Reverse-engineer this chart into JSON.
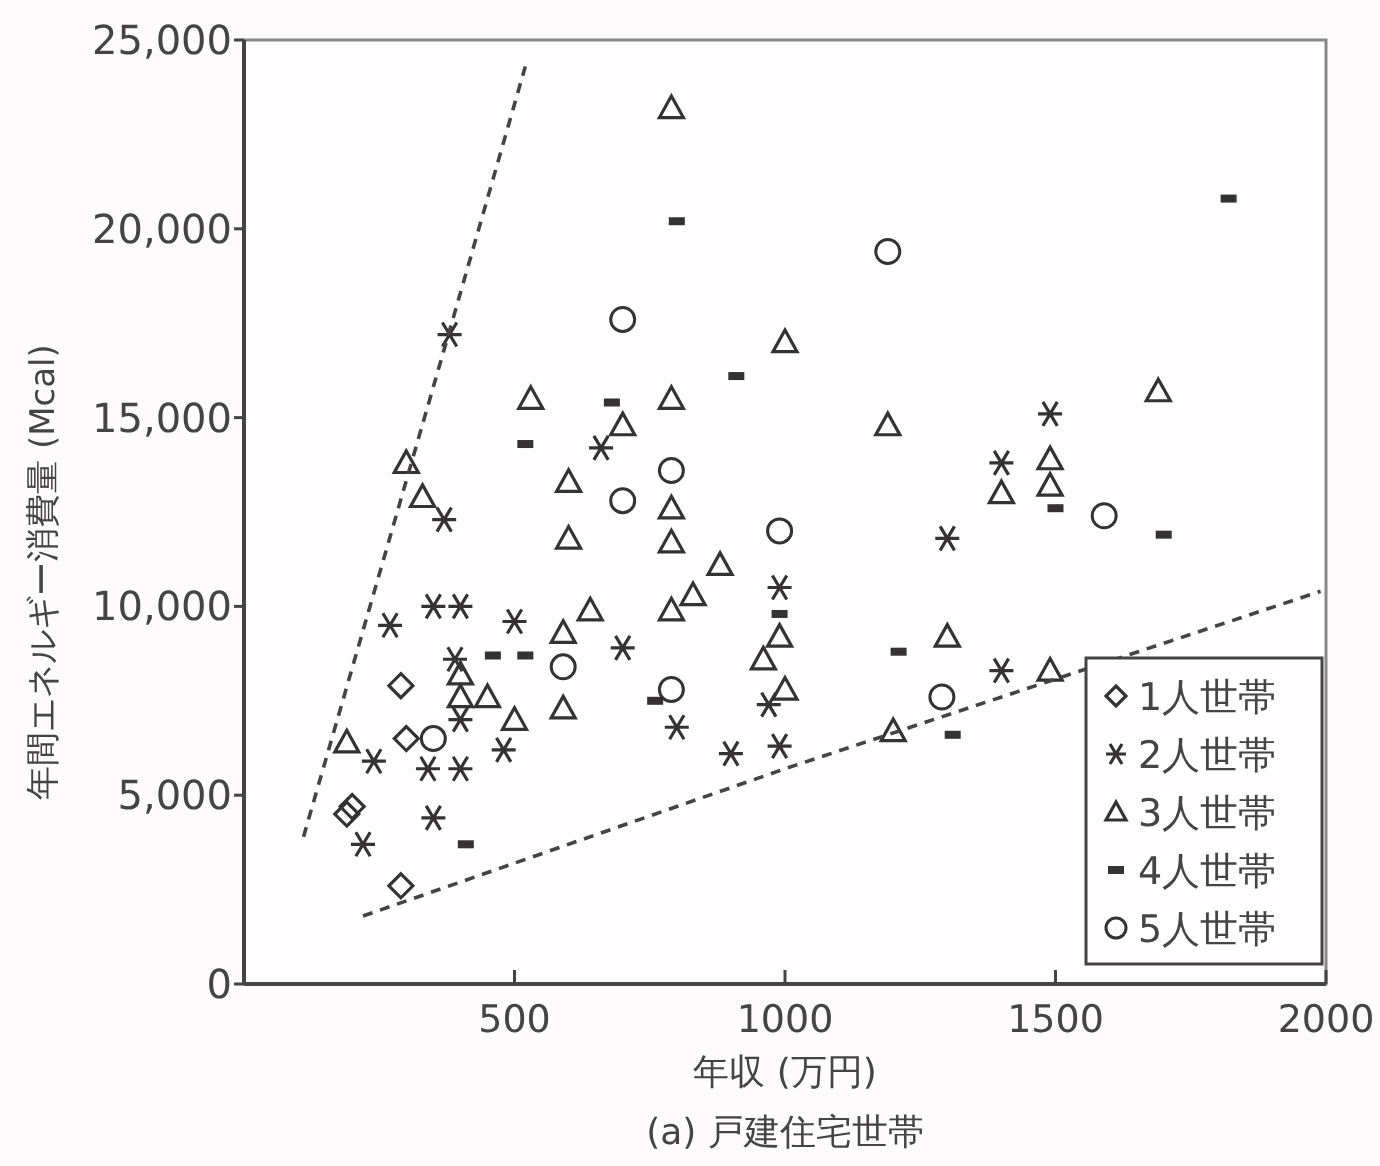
{
  "chart_data": {
    "type": "scatter",
    "xlabel": "年収 (万円)",
    "ylabel": "年間エネルギー消費量 (Mcal)",
    "annotations": [
      "(a) 戸建住宅世帯"
    ],
    "xlim": [
      0,
      2000
    ],
    "ylim": [
      0,
      25000
    ],
    "xticks": [
      500,
      1000,
      1500,
      2000
    ],
    "yticks": [
      0,
      {
        "value": 5000,
        "label": "5,000"
      },
      {
        "value": 10000,
        "label": "10,000"
      },
      {
        "value": 15000,
        "label": "15,000"
      },
      {
        "value": 20000,
        "label": "20,000"
      },
      {
        "value": 25000,
        "label": "25,000"
      }
    ],
    "legend": "bottom right",
    "series": [
      {
        "name": "1人世帯",
        "color": "#333333",
        "marker": "diamond",
        "x": [
          190,
          200,
          290,
          300,
          290
        ],
        "values": [
          4500,
          4700,
          7900,
          6500,
          2600
        ]
      },
      {
        "name": "2人世帯",
        "color": "#333333",
        "marker": "cross",
        "x": [
          270,
          350,
          400,
          390,
          500,
          700,
          400,
          240,
          340,
          400,
          480,
          350,
          220,
          800,
          380,
          370,
          660,
          990,
          970,
          900,
          990,
          1400,
          1490,
          1400,
          1300
        ],
        "values": [
          9500,
          10000,
          10000,
          8600,
          9600,
          8900,
          7000,
          5900,
          5700,
          5700,
          6200,
          4400,
          3700,
          6800,
          17200,
          12300,
          14200,
          10500,
          7400,
          6100,
          6300,
          8300,
          15100,
          13800,
          11800
        ]
      },
      {
        "name": "3人世帯",
        "color": "#333333",
        "marker": "triangle",
        "x": [
          790,
          530,
          700,
          790,
          300,
          330,
          600,
          600,
          790,
          790,
          1000,
          1190,
          1690,
          1490,
          1490,
          1400,
          880,
          830,
          640,
          790,
          590,
          400,
          400,
          450,
          500,
          590,
          190,
          990,
          960,
          1000,
          1300,
          1200,
          1490
        ],
        "values": [
          23200,
          15500,
          14800,
          15500,
          13800,
          12900,
          13300,
          11800,
          12600,
          11700,
          17000,
          14800,
          15700,
          13900,
          13200,
          13000,
          11100,
          10300,
          9900,
          9900,
          9300,
          8200,
          7600,
          7600,
          7000,
          7300,
          6400,
          9200,
          8600,
          7800,
          9200,
          6700,
          8300
        ]
      },
      {
        "name": "4人世帯",
        "color": "#333333",
        "marker": "square",
        "x": [
          800,
          520,
          680,
          910,
          1820,
          1500,
          1700,
          460,
          520,
          410,
          760,
          990,
          1210,
          1310
        ],
        "values": [
          20200,
          14300,
          15400,
          16100,
          20800,
          12600,
          11900,
          8700,
          8700,
          3700,
          7500,
          9800,
          8800,
          6600
        ]
      },
      {
        "name": "5人世帯",
        "color": "#333333",
        "marker": "circle",
        "x": [
          700,
          790,
          700,
          1190,
          1590,
          990,
          350,
          590,
          790,
          1290
        ],
        "values": [
          17600,
          13600,
          12800,
          19400,
          12400,
          12000,
          6500,
          8400,
          7800,
          7600
        ]
      },
      {
        "type": "line",
        "color": "#444444",
        "line_style": "dashed",
        "marker": "none",
        "x": [
          110,
          390,
          520
        ],
        "values": [
          3900,
          17800,
          24300
        ]
      },
      {
        "type": "line",
        "color": "#444444",
        "line_style": "dashed",
        "marker": "none",
        "x": [
          220,
          1000,
          1990
        ],
        "values": [
          1800,
          5700,
          10400
        ]
      }
    ]
  }
}
